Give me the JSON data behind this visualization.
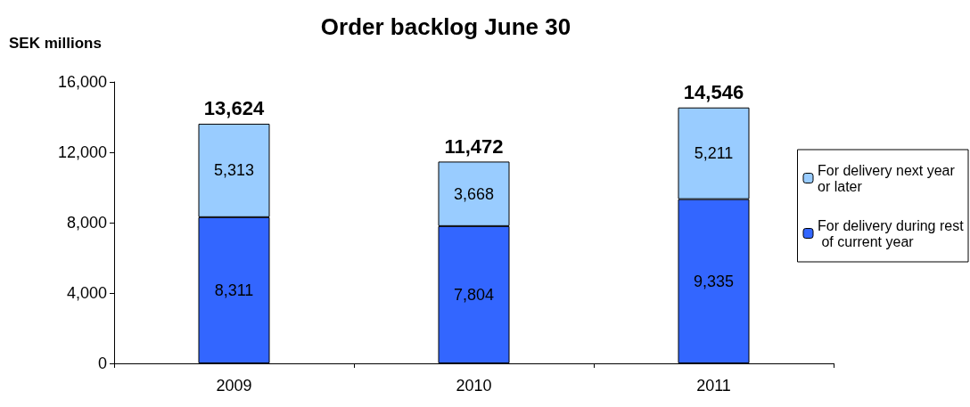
{
  "chart_data": {
    "type": "bar",
    "title": "Order backlog June 30",
    "ylabel": "SEK millions",
    "categories": [
      "2009",
      "2010",
      "2011"
    ],
    "series": [
      {
        "name": "For delivery during rest of current year",
        "color": "#3366ff",
        "values": [
          8311,
          7804,
          9335
        ],
        "value_labels": [
          "8,311",
          "7,804",
          "9,335"
        ]
      },
      {
        "name": "For delivery next year or later",
        "color": "#99ccff",
        "values": [
          5313,
          3668,
          5211
        ],
        "value_labels": [
          "5,313",
          "3,668",
          "5,211"
        ]
      }
    ],
    "stacked": true,
    "totals": [
      "13,624",
      "11,472",
      "14,546"
    ],
    "ylim": [
      0,
      16000
    ],
    "yticks": [
      {
        "value": 0,
        "label": "0"
      },
      {
        "value": 4000,
        "label": "4,000"
      },
      {
        "value": 8000,
        "label": "8,000"
      },
      {
        "value": 12000,
        "label": "12,000"
      },
      {
        "value": 16000,
        "label": "16,000"
      }
    ],
    "grid": false,
    "legend": "right"
  }
}
